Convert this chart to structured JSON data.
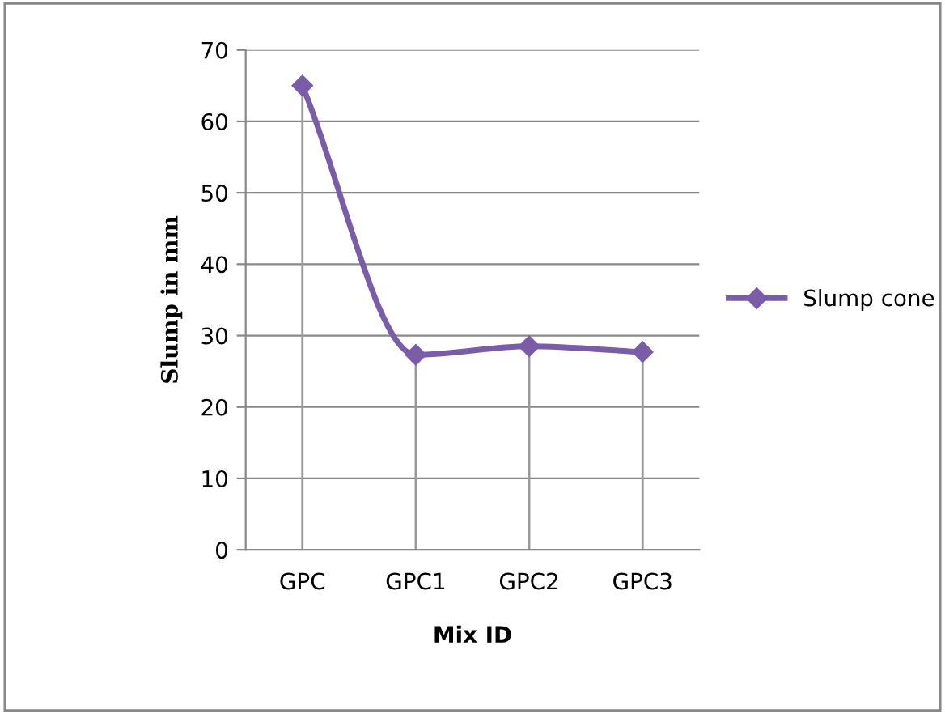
{
  "chart_data": {
    "type": "line",
    "xlabel": "Mix ID",
    "ylabel": "Slump in mm",
    "categories": [
      "GPC",
      "GPC1",
      "GPC2",
      "GPC3"
    ],
    "series": [
      {
        "name": "Slump cone",
        "color": "#7b5ca8",
        "values": [
          65,
          27.3,
          28.5,
          27.7
        ],
        "errors": [
          [
            65,
            0
          ],
          [
            27.3,
            0
          ],
          [
            28.5,
            0
          ],
          [
            27.7,
            0
          ]
        ]
      }
    ],
    "ylim": [
      0,
      70
    ],
    "yticks": [
      0,
      10,
      20,
      30,
      40,
      50,
      60,
      70
    ],
    "grid": "y",
    "legend": "right",
    "marker": "diamond",
    "line_style": "solid"
  }
}
